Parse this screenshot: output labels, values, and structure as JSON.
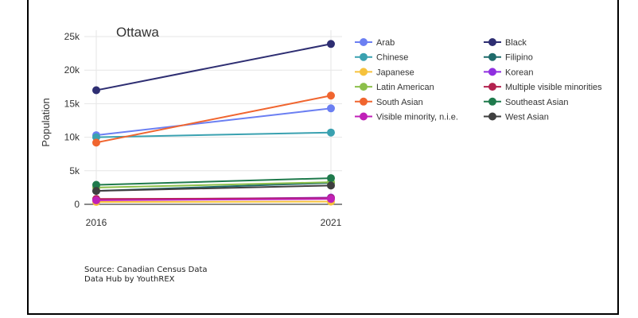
{
  "chart_data": {
    "type": "line",
    "title": "Ottawa",
    "xlabel": "",
    "ylabel": "Population",
    "x": [
      "2016",
      "2021"
    ],
    "ylim": [
      0,
      25000
    ],
    "yticks": [
      0,
      5000,
      10000,
      15000,
      20000,
      25000
    ],
    "ytick_labels": [
      "0",
      "5k",
      "10k",
      "15k",
      "20k",
      "25k"
    ],
    "grid": true,
    "legend_position": "right",
    "series": [
      {
        "name": "Arab",
        "color": "#6b7ff2",
        "values": [
          10300,
          14300
        ]
      },
      {
        "name": "Black",
        "color": "#2e2e72",
        "values": [
          17000,
          23900
        ]
      },
      {
        "name": "Chinese",
        "color": "#3aa1b0",
        "values": [
          10000,
          10700
        ]
      },
      {
        "name": "Filipino",
        "color": "#1f6b6b",
        "values": [
          2000,
          3200
        ]
      },
      {
        "name": "Japanese",
        "color": "#f6c23c",
        "values": [
          350,
          400
        ]
      },
      {
        "name": "Korean",
        "color": "#8f2fe0",
        "values": [
          700,
          1000
        ]
      },
      {
        "name": "Latin American",
        "color": "#8cbf4a",
        "values": [
          2500,
          3300
        ]
      },
      {
        "name": "Multiple visible minorities",
        "color": "#b3224f",
        "values": [
          800,
          900
        ]
      },
      {
        "name": "South Asian",
        "color": "#f0652f",
        "values": [
          9200,
          16200
        ]
      },
      {
        "name": "Southeast Asian",
        "color": "#1f7a4c",
        "values": [
          2900,
          3900
        ]
      },
      {
        "name": "Visible minority, n.i.e.",
        "color": "#c020b8",
        "values": [
          600,
          800
        ]
      },
      {
        "name": "West Asian",
        "color": "#3f3f3f",
        "values": [
          2000,
          2800
        ]
      }
    ]
  },
  "source": {
    "line1": "Source: Canadian Census Data",
    "line2": "Data Hub by YouthREX"
  }
}
